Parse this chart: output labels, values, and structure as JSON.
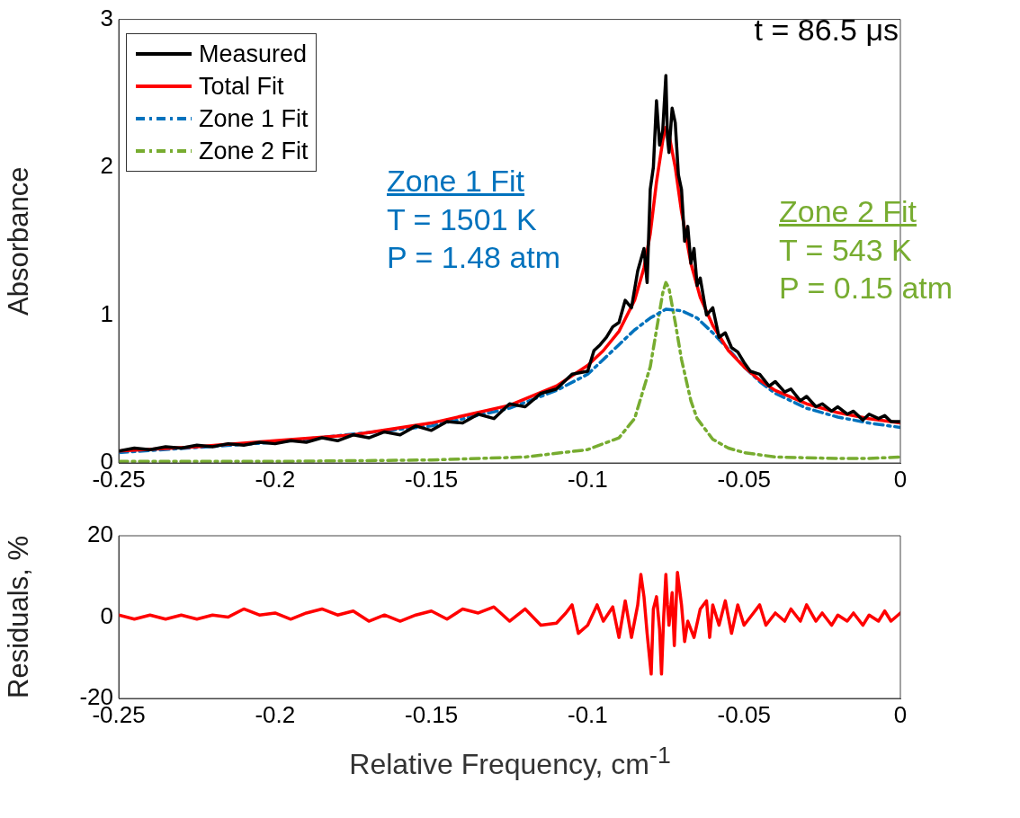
{
  "chart_data": [
    {
      "type": "line",
      "ylabel": "Absorbance",
      "xlim": [
        -0.25,
        0
      ],
      "xticks": [
        -0.25,
        -0.2,
        -0.15,
        -0.1,
        -0.05,
        0
      ],
      "ylim": [
        0,
        3
      ],
      "yticks": [
        0,
        1,
        2,
        3
      ],
      "grid": false,
      "legend": "top left",
      "marker": "none",
      "annotations": [
        "t = 86.5 μs",
        "Zone 1 Fit\nT = 1501 K\nP = 1.48 atm",
        "Zone 2 Fit\nT = 543 K\nP = 0.15 atm"
      ],
      "series": [
        {
          "name": "Measured",
          "color": "#000000",
          "line_style": "solid",
          "x": [
            -0.25,
            -0.245,
            -0.24,
            -0.235,
            -0.23,
            -0.225,
            -0.22,
            -0.215,
            -0.21,
            -0.205,
            -0.2,
            -0.195,
            -0.19,
            -0.185,
            -0.18,
            -0.175,
            -0.17,
            -0.165,
            -0.16,
            -0.155,
            -0.15,
            -0.145,
            -0.14,
            -0.135,
            -0.13,
            -0.125,
            -0.12,
            -0.115,
            -0.11,
            -0.105,
            -0.1,
            -0.098,
            -0.096,
            -0.094,
            -0.092,
            -0.09,
            -0.088,
            -0.086,
            -0.084,
            -0.082,
            -0.081,
            -0.08,
            -0.079,
            -0.078,
            -0.077,
            -0.076,
            -0.075,
            -0.0745,
            -0.074,
            -0.073,
            -0.072,
            -0.071,
            -0.07,
            -0.069,
            -0.068,
            -0.067,
            -0.066,
            -0.065,
            -0.064,
            -0.062,
            -0.06,
            -0.058,
            -0.056,
            -0.054,
            -0.052,
            -0.05,
            -0.048,
            -0.045,
            -0.042,
            -0.04,
            -0.037,
            -0.035,
            -0.032,
            -0.03,
            -0.027,
            -0.025,
            -0.022,
            -0.02,
            -0.017,
            -0.015,
            -0.012,
            -0.01,
            -0.007,
            -0.005,
            -0.003,
            0
          ],
          "values": [
            0.08,
            0.1,
            0.09,
            0.11,
            0.1,
            0.12,
            0.11,
            0.13,
            0.12,
            0.14,
            0.13,
            0.15,
            0.14,
            0.17,
            0.15,
            0.19,
            0.17,
            0.21,
            0.19,
            0.25,
            0.22,
            0.28,
            0.27,
            0.33,
            0.3,
            0.4,
            0.38,
            0.47,
            0.5,
            0.6,
            0.62,
            0.76,
            0.8,
            0.85,
            0.92,
            0.95,
            1.1,
            1.05,
            1.3,
            1.45,
            1.22,
            1.85,
            2.0,
            2.45,
            2.15,
            2.25,
            2.62,
            2.2,
            2.1,
            2.4,
            2.3,
            1.95,
            1.85,
            1.5,
            1.6,
            1.35,
            1.45,
            1.2,
            1.25,
            1.0,
            1.05,
            0.85,
            0.88,
            0.78,
            0.75,
            0.68,
            0.62,
            0.6,
            0.52,
            0.55,
            0.48,
            0.5,
            0.42,
            0.45,
            0.38,
            0.4,
            0.35,
            0.38,
            0.33,
            0.35,
            0.29,
            0.33,
            0.3,
            0.32,
            0.28,
            0.28
          ]
        },
        {
          "name": "Total Fit",
          "color": "#ff0000",
          "line_style": "solid",
          "x": [
            -0.25,
            -0.225,
            -0.2,
            -0.175,
            -0.15,
            -0.125,
            -0.11,
            -0.1,
            -0.095,
            -0.09,
            -0.085,
            -0.082,
            -0.08,
            -0.078,
            -0.076,
            -0.075,
            -0.074,
            -0.072,
            -0.07,
            -0.067,
            -0.064,
            -0.06,
            -0.055,
            -0.05,
            -0.045,
            -0.04,
            -0.03,
            -0.02,
            -0.01,
            0
          ],
          "values": [
            0.08,
            0.11,
            0.15,
            0.19,
            0.27,
            0.39,
            0.52,
            0.66,
            0.76,
            0.89,
            1.1,
            1.32,
            1.55,
            1.9,
            2.18,
            2.27,
            2.22,
            2.0,
            1.7,
            1.35,
            1.12,
            0.93,
            0.76,
            0.65,
            0.56,
            0.49,
            0.4,
            0.34,
            0.3,
            0.27
          ]
        },
        {
          "name": "Zone 1 Fit",
          "color": "#0072bd",
          "line_style": "dashed",
          "x": [
            -0.25,
            -0.2,
            -0.15,
            -0.125,
            -0.11,
            -0.1,
            -0.09,
            -0.085,
            -0.08,
            -0.075,
            -0.07,
            -0.065,
            -0.06,
            -0.055,
            -0.05,
            -0.045,
            -0.04,
            -0.03,
            -0.02,
            -0.01,
            0
          ],
          "values": [
            0.07,
            0.14,
            0.25,
            0.37,
            0.49,
            0.6,
            0.8,
            0.9,
            0.98,
            1.04,
            1.03,
            0.98,
            0.88,
            0.77,
            0.65,
            0.55,
            0.47,
            0.37,
            0.31,
            0.27,
            0.24
          ]
        },
        {
          "name": "Zone 2 Fit",
          "color": "#77ac30",
          "line_style": "dashed",
          "x": [
            -0.25,
            -0.2,
            -0.15,
            -0.12,
            -0.1,
            -0.09,
            -0.085,
            -0.08,
            -0.078,
            -0.076,
            -0.075,
            -0.074,
            -0.072,
            -0.07,
            -0.067,
            -0.065,
            -0.06,
            -0.055,
            -0.05,
            -0.04,
            -0.02,
            -0.01,
            0
          ],
          "values": [
            0.01,
            0.01,
            0.02,
            0.04,
            0.09,
            0.17,
            0.3,
            0.65,
            0.9,
            1.15,
            1.22,
            1.18,
            0.95,
            0.7,
            0.42,
            0.3,
            0.16,
            0.1,
            0.07,
            0.04,
            0.03,
            0.03,
            0.04
          ]
        }
      ]
    },
    {
      "type": "line",
      "ylabel": "Residuals, %",
      "xlabel": "Relative Frequency, cm$^{-1}$",
      "xlim": [
        -0.25,
        0
      ],
      "xticks": [
        -0.25,
        -0.2,
        -0.15,
        -0.1,
        -0.05,
        0
      ],
      "ylim": [
        -20,
        20
      ],
      "yticks": [
        -20,
        0,
        20
      ],
      "grid": false,
      "marker": "none",
      "series": [
        {
          "color": "#ff0000",
          "line_style": "solid",
          "x": [
            -0.25,
            -0.245,
            -0.24,
            -0.235,
            -0.23,
            -0.225,
            -0.22,
            -0.215,
            -0.21,
            -0.205,
            -0.2,
            -0.195,
            -0.19,
            -0.185,
            -0.18,
            -0.175,
            -0.17,
            -0.165,
            -0.16,
            -0.155,
            -0.15,
            -0.145,
            -0.14,
            -0.135,
            -0.13,
            -0.125,
            -0.12,
            -0.115,
            -0.11,
            -0.107,
            -0.105,
            -0.103,
            -0.1,
            -0.097,
            -0.095,
            -0.092,
            -0.09,
            -0.088,
            -0.086,
            -0.084,
            -0.083,
            -0.082,
            -0.081,
            -0.0797,
            -0.079,
            -0.078,
            -0.077,
            -0.0764,
            -0.0757,
            -0.075,
            -0.0745,
            -0.074,
            -0.073,
            -0.0723,
            -0.0713,
            -0.07,
            -0.069,
            -0.068,
            -0.066,
            -0.064,
            -0.062,
            -0.061,
            -0.06,
            -0.058,
            -0.056,
            -0.054,
            -0.052,
            -0.05,
            -0.047,
            -0.045,
            -0.043,
            -0.04,
            -0.037,
            -0.035,
            -0.032,
            -0.03,
            -0.027,
            -0.025,
            -0.022,
            -0.02,
            -0.017,
            -0.015,
            -0.012,
            -0.01,
            -0.007,
            -0.005,
            -0.003,
            0
          ],
          "values": [
            0.5,
            -0.5,
            0.5,
            -0.5,
            0.5,
            -0.5,
            0.5,
            0,
            2,
            0.5,
            1,
            -0.5,
            1,
            2,
            0.5,
            1.5,
            -1,
            0.5,
            -1,
            0.5,
            1.5,
            -0.5,
            2,
            1,
            2.5,
            -1,
            2,
            -2,
            -1.5,
            1,
            3,
            -4,
            -2,
            3,
            -1,
            2.5,
            -5,
            4,
            -5,
            3,
            10.5,
            5,
            -4,
            -14,
            2,
            5,
            -3,
            -14,
            0,
            10.5,
            3,
            -2,
            6,
            -7,
            11,
            3,
            -6,
            -1,
            -5,
            2,
            4,
            -5,
            3,
            -2,
            4,
            -4,
            3,
            -2,
            1,
            3,
            -2,
            1,
            -1,
            2,
            -1,
            3,
            -1,
            1,
            -2,
            0.5,
            -1,
            1,
            -2,
            0.5,
            -1,
            1.5,
            -1,
            1
          ]
        }
      ]
    }
  ]
}
